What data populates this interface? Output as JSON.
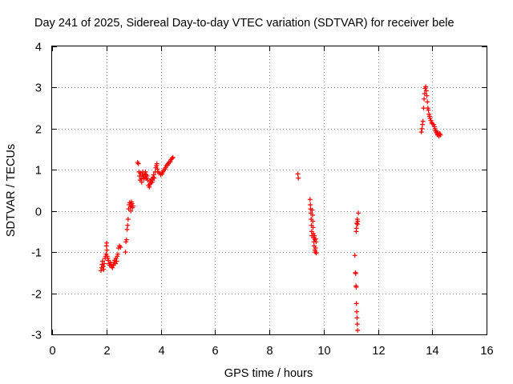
{
  "chart_data": {
    "type": "scatter",
    "title": "Day 241 of 2025, Sidereal Day-to-day VTEC variation (SDTVAR) for receiver bele",
    "xlabel": "GPS time / hours",
    "ylabel": "SDTVAR / TECUs",
    "xlim": [
      0,
      16
    ],
    "ylim": [
      -3,
      4
    ],
    "xticks": [
      0,
      2,
      4,
      6,
      8,
      10,
      12,
      14,
      16
    ],
    "yticks": [
      -3,
      -2,
      -1,
      0,
      1,
      2,
      3,
      4
    ],
    "xtick_labels": [
      "0",
      "2",
      "4",
      "6",
      "8",
      "10",
      "12",
      "14",
      "16"
    ],
    "ytick_labels": [
      "-3",
      "-2",
      "-1",
      "0",
      "1",
      "2",
      "3",
      "4"
    ],
    "grid": true,
    "marker": "plus",
    "color": "#ff0000",
    "series": [
      {
        "name": "SDTVAR",
        "points": [
          [
            1.8,
            -1.45
          ],
          [
            1.82,
            -1.38
          ],
          [
            1.84,
            -1.3
          ],
          [
            1.86,
            -1.22
          ],
          [
            1.88,
            -1.35
          ],
          [
            1.9,
            -1.42
          ],
          [
            1.92,
            -1.28
          ],
          [
            1.95,
            -1.15
          ],
          [
            1.97,
            -1.1
          ],
          [
            1.99,
            -1.05
          ],
          [
            2.0,
            -0.85
          ],
          [
            2.01,
            -0.78
          ],
          [
            2.02,
            -0.95
          ],
          [
            2.03,
            -1.1
          ],
          [
            2.05,
            -1.15
          ],
          [
            2.07,
            -1.2
          ],
          [
            2.1,
            -1.28
          ],
          [
            2.12,
            -1.32
          ],
          [
            2.15,
            -1.25
          ],
          [
            2.18,
            -1.3
          ],
          [
            2.2,
            -1.35
          ],
          [
            2.22,
            -1.38
          ],
          [
            2.25,
            -1.32
          ],
          [
            2.28,
            -1.25
          ],
          [
            2.3,
            -1.2
          ],
          [
            2.33,
            -1.28
          ],
          [
            2.35,
            -1.15
          ],
          [
            2.38,
            -1.22
          ],
          [
            2.4,
            -1.1
          ],
          [
            2.42,
            -1.05
          ],
          [
            2.45,
            -0.9
          ],
          [
            2.48,
            -0.85
          ],
          [
            2.52,
            -0.88
          ],
          [
            2.7,
            -1.0
          ],
          [
            2.72,
            -0.75
          ],
          [
            2.74,
            -0.7
          ],
          [
            2.76,
            -0.45
          ],
          [
            2.78,
            -0.35
          ],
          [
            2.8,
            -0.2
          ],
          [
            2.82,
            0.05
          ],
          [
            2.84,
            0.15
          ],
          [
            2.86,
            0.2
          ],
          [
            2.88,
            0.1
          ],
          [
            2.9,
            0.0
          ],
          [
            2.92,
            0.22
          ],
          [
            2.94,
            0.18
          ],
          [
            2.96,
            0.08
          ],
          [
            2.98,
            0.12
          ],
          [
            3.15,
            1.18
          ],
          [
            3.18,
            1.15
          ],
          [
            3.2,
            0.95
          ],
          [
            3.22,
            0.85
          ],
          [
            3.24,
            0.75
          ],
          [
            3.26,
            0.92
          ],
          [
            3.28,
            0.8
          ],
          [
            3.3,
            0.7
          ],
          [
            3.32,
            0.88
          ],
          [
            3.34,
            0.95
          ],
          [
            3.36,
            0.85
          ],
          [
            3.38,
            0.78
          ],
          [
            3.4,
            0.9
          ],
          [
            3.42,
            0.82
          ],
          [
            3.44,
            0.95
          ],
          [
            3.46,
            0.88
          ],
          [
            3.48,
            0.8
          ],
          [
            3.5,
            0.85
          ],
          [
            3.52,
            0.75
          ],
          [
            3.55,
            0.62
          ],
          [
            3.58,
            0.58
          ],
          [
            3.6,
            0.65
          ],
          [
            3.62,
            0.72
          ],
          [
            3.64,
            0.68
          ],
          [
            3.66,
            0.78
          ],
          [
            3.68,
            0.7
          ],
          [
            3.7,
            0.75
          ],
          [
            3.72,
            0.82
          ],
          [
            3.74,
            0.88
          ],
          [
            3.76,
            0.8
          ],
          [
            3.8,
            0.95
          ],
          [
            3.82,
            1.05
          ],
          [
            3.84,
            1.1
          ],
          [
            3.86,
            1.15
          ],
          [
            3.88,
            1.02
          ],
          [
            3.9,
            0.95
          ],
          [
            3.95,
            0.92
          ],
          [
            4.0,
            0.88
          ],
          [
            4.05,
            0.9
          ],
          [
            4.08,
            0.95
          ],
          [
            4.1,
            0.98
          ],
          [
            4.15,
            1.02
          ],
          [
            4.18,
            1.05
          ],
          [
            4.2,
            1.1
          ],
          [
            4.25,
            1.12
          ],
          [
            4.28,
            1.15
          ],
          [
            4.3,
            1.18
          ],
          [
            4.35,
            1.2
          ],
          [
            4.38,
            1.25
          ],
          [
            4.42,
            1.28
          ],
          [
            4.45,
            1.3
          ],
          [
            9.05,
            0.9
          ],
          [
            9.07,
            0.8
          ],
          [
            9.5,
            0.28
          ],
          [
            9.51,
            0.15
          ],
          [
            9.52,
            0.05
          ],
          [
            9.53,
            -0.05
          ],
          [
            9.54,
            -0.2
          ],
          [
            9.55,
            -0.35
          ],
          [
            9.56,
            -0.5
          ],
          [
            9.57,
            -0.6
          ],
          [
            9.58,
            0.02
          ],
          [
            9.59,
            -0.1
          ],
          [
            9.6,
            -0.25
          ],
          [
            9.61,
            -0.4
          ],
          [
            9.62,
            -0.55
          ],
          [
            9.63,
            -0.65
          ],
          [
            9.64,
            -0.75
          ],
          [
            9.65,
            -0.85
          ],
          [
            9.66,
            -0.6
          ],
          [
            9.67,
            -0.7
          ],
          [
            9.68,
            -0.95
          ],
          [
            9.69,
            -1.0
          ],
          [
            9.7,
            -0.9
          ],
          [
            9.71,
            -0.68
          ],
          [
            9.72,
            -0.75
          ],
          [
            9.73,
            -1.02
          ],
          [
            11.15,
            -1.08
          ],
          [
            11.17,
            -1.5
          ],
          [
            11.18,
            -1.52
          ],
          [
            11.19,
            -1.82
          ],
          [
            11.2,
            -1.85
          ],
          [
            11.21,
            -2.25
          ],
          [
            11.22,
            -2.45
          ],
          [
            11.23,
            -2.6
          ],
          [
            11.24,
            -2.75
          ],
          [
            11.25,
            -2.9
          ],
          [
            11.2,
            -0.5
          ],
          [
            11.22,
            -0.3
          ],
          [
            11.24,
            -0.2
          ],
          [
            11.26,
            -0.25
          ],
          [
            11.28,
            -0.05
          ],
          [
            11.21,
            -0.42
          ],
          [
            11.25,
            -0.32
          ],
          [
            13.6,
            1.92
          ],
          [
            13.62,
            2.0
          ],
          [
            13.64,
            2.1
          ],
          [
            13.66,
            2.18
          ],
          [
            13.68,
            2.5
          ],
          [
            13.7,
            2.72
          ],
          [
            13.72,
            2.85
          ],
          [
            13.74,
            2.98
          ],
          [
            13.76,
            3.02
          ],
          [
            13.78,
            2.92
          ],
          [
            13.8,
            2.8
          ],
          [
            13.82,
            2.65
          ],
          [
            13.84,
            2.5
          ],
          [
            13.86,
            2.45
          ],
          [
            13.88,
            2.35
          ],
          [
            13.9,
            2.3
          ],
          [
            13.92,
            2.25
          ],
          [
            13.95,
            2.2
          ],
          [
            13.98,
            2.15
          ],
          [
            14.0,
            2.12
          ],
          [
            14.05,
            2.1
          ],
          [
            14.08,
            2.05
          ],
          [
            14.1,
            2.0
          ],
          [
            14.12,
            1.95
          ],
          [
            14.15,
            1.92
          ],
          [
            14.18,
            1.88
          ],
          [
            14.2,
            1.85
          ],
          [
            14.22,
            1.9
          ],
          [
            14.25,
            1.82
          ],
          [
            14.28,
            1.88
          ],
          [
            14.3,
            1.85
          ]
        ]
      }
    ]
  }
}
